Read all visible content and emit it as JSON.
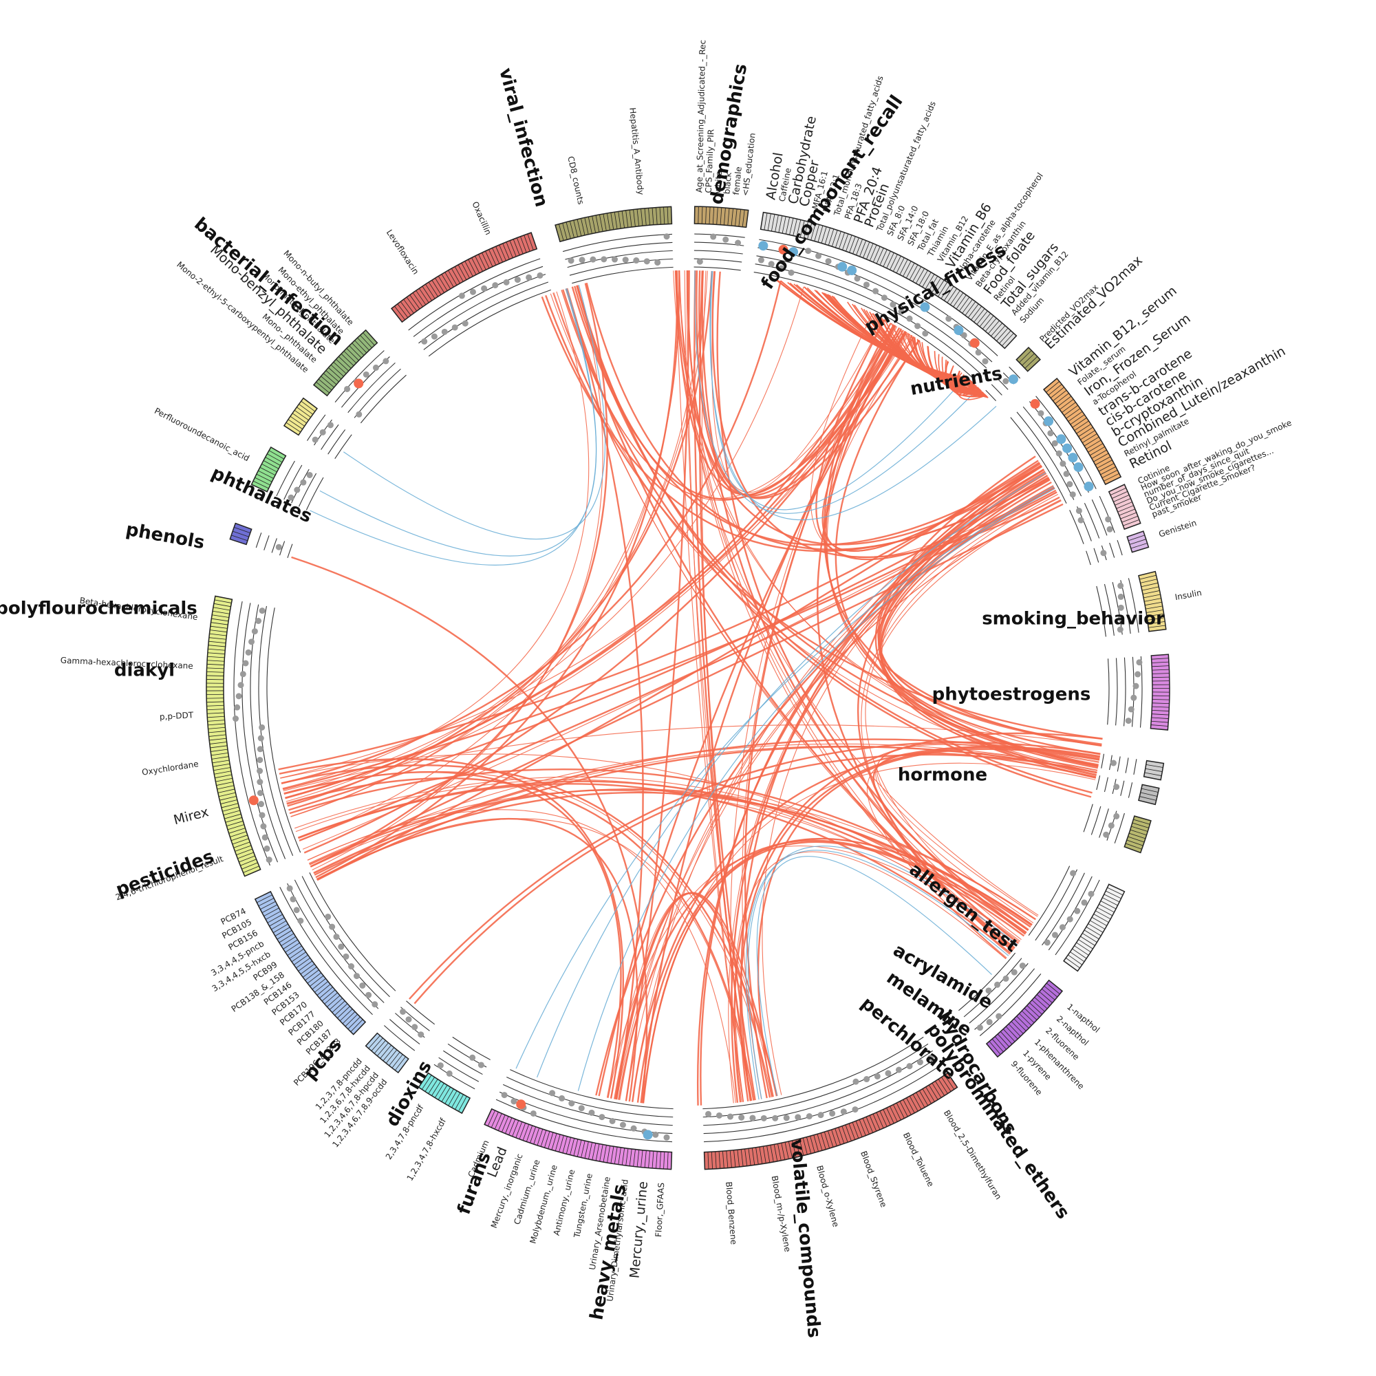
{
  "colors": {
    "positive": "#f4694c",
    "negative": "#6aaed6",
    "neutral": "#9a9a9a",
    "track_line": "#333333",
    "label": "#222222"
  },
  "groups": [
    {
      "name": "demographics",
      "color": "#c2a36b",
      "labels": [
        {
          "text": "Age_at_Screening_Adjudicated_-_Rec",
          "tone": "k"
        },
        {
          "text": "CPS_Family_PIR",
          "tone": "k"
        },
        {
          "text": "white",
          "tone": "k"
        },
        {
          "text": "black",
          "tone": "k"
        },
        {
          "text": "female",
          "tone": "k"
        },
        {
          "text": "<HS_education",
          "tone": "k"
        }
      ]
    },
    {
      "name": "food_component_recall",
      "color": "#e0e0e0",
      "labels": [
        {
          "text": "Alcohol",
          "tone": "b",
          "big": true
        },
        {
          "text": "Caffeine",
          "tone": "k"
        },
        {
          "text": "Carbohydrate",
          "tone": "r",
          "big": true
        },
        {
          "text": "Copper",
          "tone": "b",
          "big": true
        },
        {
          "text": "MFA_16:1",
          "tone": "k"
        },
        {
          "text": "MFA_22:1",
          "tone": "k"
        },
        {
          "text": "Total_monounsaturated_fatty_acids",
          "tone": "k"
        },
        {
          "text": "PFA_18:3",
          "tone": "k"
        },
        {
          "text": "PFA_20:4",
          "tone": "b",
          "big": true
        },
        {
          "text": "Protein",
          "tone": "b",
          "big": true
        },
        {
          "text": "Total_polyunsaturated_fatty_acids",
          "tone": "k"
        },
        {
          "text": "SFA_8:0",
          "tone": "k"
        },
        {
          "text": "SFA_14:0",
          "tone": "k"
        },
        {
          "text": "SFA_18:0",
          "tone": "k"
        },
        {
          "text": "Total_fat",
          "tone": "k"
        },
        {
          "text": "Thiamin",
          "tone": "k"
        },
        {
          "text": "Vitamin_B12",
          "tone": "k"
        },
        {
          "text": "Vitamin_B6",
          "tone": "b",
          "big": true
        },
        {
          "text": "Alpha-carotene",
          "tone": "k"
        },
        {
          "text": "Vitamin_E_as_alpha-tocopherol",
          "tone": "k"
        },
        {
          "text": "Beta-cryptoxanthin",
          "tone": "k"
        },
        {
          "text": "Food_folate",
          "tone": "b",
          "big": true
        },
        {
          "text": "Retinol",
          "tone": "k"
        },
        {
          "text": "Total_sugars",
          "tone": "r",
          "big": true
        },
        {
          "text": "Added_vitamin_B12",
          "tone": "k"
        },
        {
          "text": "Sodium",
          "tone": "k"
        }
      ]
    },
    {
      "name": "physical_fitness",
      "color": "#a8a86a",
      "labels": [
        {
          "text": "Predicted_VO2max",
          "tone": "k"
        },
        {
          "text": "Estimated_VO2max",
          "tone": "b",
          "big": true
        }
      ]
    },
    {
      "name": "nutrients",
      "color": "#f0b070",
      "labels": [
        {
          "text": "Vitamin_B12,_serum",
          "tone": "r",
          "big": true
        },
        {
          "text": "Folate,_serum",
          "tone": "k"
        },
        {
          "text": "Iron,_Frozen_Serum",
          "tone": "b",
          "big": true
        },
        {
          "text": "a-Tocopherol",
          "tone": "k"
        },
        {
          "text": "trans-b-carotene",
          "tone": "b",
          "big": true
        },
        {
          "text": "cis-b-carotene",
          "tone": "b",
          "big": true
        },
        {
          "text": "b-cryptoxanthin",
          "tone": "b",
          "big": true
        },
        {
          "text": "Combined_Lutein/zeaxanthin",
          "tone": "b",
          "big": true
        },
        {
          "text": "Retinyl_palmitate",
          "tone": "k"
        },
        {
          "text": "Retinol",
          "tone": "b",
          "big": true
        }
      ]
    },
    {
      "name": "smoking_behavior",
      "color": "#f3c9d3",
      "labels": [
        {
          "text": "Cotinine",
          "tone": "k"
        },
        {
          "text": "How_soon_after_waking_do_you_smoke",
          "tone": "k"
        },
        {
          "text": "number_of_days_since_quit",
          "tone": "k"
        },
        {
          "text": "Do_you_now_smoke_cigarettes...",
          "tone": "k"
        },
        {
          "text": "Current_Cigarette_Smoker?",
          "tone": "k"
        },
        {
          "text": "past_smoker",
          "tone": "k"
        }
      ]
    },
    {
      "name": "phytoestrogens",
      "color": "#d9b8e8",
      "labels": [
        {
          "text": "Genistein",
          "tone": "k"
        }
      ]
    },
    {
      "name": "hormone",
      "color": "#f0dc8c",
      "labels": [
        {
          "text": "Insulin",
          "tone": "k"
        }
      ]
    },
    {
      "name": "allergen_test",
      "color": "#d98ae0",
      "labels": []
    },
    {
      "name": "acrylamide",
      "color": "#cfcfcf",
      "labels": []
    },
    {
      "name": "melamine",
      "color": "#bdbdbd",
      "labels": []
    },
    {
      "name": "perchlorate",
      "color": "#b9b96f",
      "labels": []
    },
    {
      "name": "polybrominated_ethers",
      "color": "#f2f2f2",
      "labels": []
    },
    {
      "name": "hydrocarbons",
      "color": "#b56fdb",
      "labels": [
        {
          "text": "1-napthol",
          "tone": "k"
        },
        {
          "text": "2-napthol",
          "tone": "k"
        },
        {
          "text": "2-fluorene",
          "tone": "k"
        },
        {
          "text": "1-phenanthrene",
          "tone": "k"
        },
        {
          "text": "1-pyrene",
          "tone": "k"
        },
        {
          "text": "9-fluorene",
          "tone": "k"
        }
      ]
    },
    {
      "name": "volatile_compounds",
      "color": "#e0716a",
      "labels": [
        {
          "text": "Blood_2,5-Dimethylfuran",
          "tone": "k"
        },
        {
          "text": "Blood_Toluene",
          "tone": "k"
        },
        {
          "text": "Blood_Styrene",
          "tone": "k"
        },
        {
          "text": "Blood_o-Xylene",
          "tone": "k"
        },
        {
          "text": "Blood_m-/p-Xylene",
          "tone": "k"
        },
        {
          "text": "Blood_Benzene",
          "tone": "k"
        }
      ]
    },
    {
      "name": "heavy_metals",
      "color": "#e58ae0",
      "labels": [
        {
          "text": "Floor,_GFAAS",
          "tone": "k"
        },
        {
          "text": "Mercury,_urine",
          "tone": "b",
          "big": true
        },
        {
          "text": "Urinary_Dimethylarsonic_acid",
          "tone": "k"
        },
        {
          "text": "Urinary_Arsenobetaine",
          "tone": "k"
        },
        {
          "text": "Tungsten,_urine",
          "tone": "k"
        },
        {
          "text": "Antimony,_urine",
          "tone": "k"
        },
        {
          "text": "Molybdenum,_urine",
          "tone": "k"
        },
        {
          "text": "Cadmium,_urine",
          "tone": "k"
        },
        {
          "text": "Mercury,_inorganic",
          "tone": "k"
        },
        {
          "text": "Lead",
          "tone": "r",
          "big": true
        },
        {
          "text": "Cadmium",
          "tone": "k"
        }
      ]
    },
    {
      "name": "furans",
      "color": "#7fe8e0",
      "labels": [
        {
          "text": "1,2,3,4,7,8-hxcdf",
          "tone": "k"
        },
        {
          "text": "2,3,4,7,8-pncdf",
          "tone": "k"
        }
      ]
    },
    {
      "name": "dioxins",
      "color": "#b8d4ee",
      "labels": [
        {
          "text": "1,2,3,4,6,7,8,9-ocdd",
          "tone": "k"
        },
        {
          "text": "1,2,3,4,6,7,8-hpcdd",
          "tone": "k"
        },
        {
          "text": "1,2,3,6,7,8-hxcdd",
          "tone": "k"
        },
        {
          "text": "1,2,3,7,8-pncdd",
          "tone": "k"
        }
      ]
    },
    {
      "name": "pcbs",
      "color": "#a9c4ef",
      "labels": [
        {
          "text": "PCB196_&_203",
          "tone": "k"
        },
        {
          "text": "PCB187",
          "tone": "k"
        },
        {
          "text": "PCB180",
          "tone": "k"
        },
        {
          "text": "PCB177",
          "tone": "k"
        },
        {
          "text": "PCB170",
          "tone": "k"
        },
        {
          "text": "PCB153",
          "tone": "k"
        },
        {
          "text": "PCB146",
          "tone": "k"
        },
        {
          "text": "PCB138_&_158",
          "tone": "k"
        },
        {
          "text": "PCB99",
          "tone": "k"
        },
        {
          "text": "3,3,4,4,5,5-hxcb",
          "tone": "k"
        },
        {
          "text": "3,3,4,4,5-pncb",
          "tone": "k"
        },
        {
          "text": "PCB156",
          "tone": "k"
        },
        {
          "text": "PCB105",
          "tone": "k"
        },
        {
          "text": "PCB74",
          "tone": "k"
        }
      ]
    },
    {
      "name": "pesticides",
      "color": "#e4ee8c",
      "labels": [
        {
          "text": "2,4,6-trichlorophenol_result",
          "tone": "k"
        },
        {
          "text": "Mirex",
          "tone": "r",
          "big": true
        },
        {
          "text": "Oxychlordane",
          "tone": "k"
        },
        {
          "text": "p,p-DDT",
          "tone": "k"
        },
        {
          "text": "Gamma-hexachlorocyclohexane",
          "tone": "k"
        },
        {
          "text": "Beta-hexachlorocyclohexane",
          "tone": "k"
        }
      ]
    },
    {
      "name": "diakyl",
      "color": "#6f6fd4",
      "labels": []
    },
    {
      "name": "polyflourochemicals",
      "color": "#8fe08f",
      "labels": [
        {
          "text": "Perfluoroundecanoic_acid",
          "tone": "k"
        }
      ]
    },
    {
      "name": "phenols",
      "color": "#f0e890",
      "labels": []
    },
    {
      "name": "phthalates",
      "color": "#93b87a",
      "labels": [
        {
          "text": "Mono-2-ethyl-5-carboxypentyl_phthalate",
          "tone": "k"
        },
        {
          "text": "Mono-_phthalate",
          "tone": "k"
        },
        {
          "text": "Mono-benzyl_phthalate",
          "tone": "r",
          "big": true
        },
        {
          "text": "Mono-methyl_phthalate",
          "tone": "k"
        },
        {
          "text": "Mono-ethyl_phthalate",
          "tone": "k"
        },
        {
          "text": "Mono-n-butyl_phthalate",
          "tone": "k"
        }
      ]
    },
    {
      "name": "bacterial_infection",
      "color": "#e0706c",
      "labels": [
        {
          "text": "Levofloxacin",
          "tone": "k"
        },
        {
          "text": "Oxacillin",
          "tone": "k"
        }
      ]
    },
    {
      "name": "viral_infection",
      "color": "#a7a46a",
      "labels": [
        {
          "text": "CD8_counts",
          "tone": "k"
        },
        {
          "text": "Hepatitis_A_Antibody",
          "tone": "k"
        }
      ]
    }
  ]
}
